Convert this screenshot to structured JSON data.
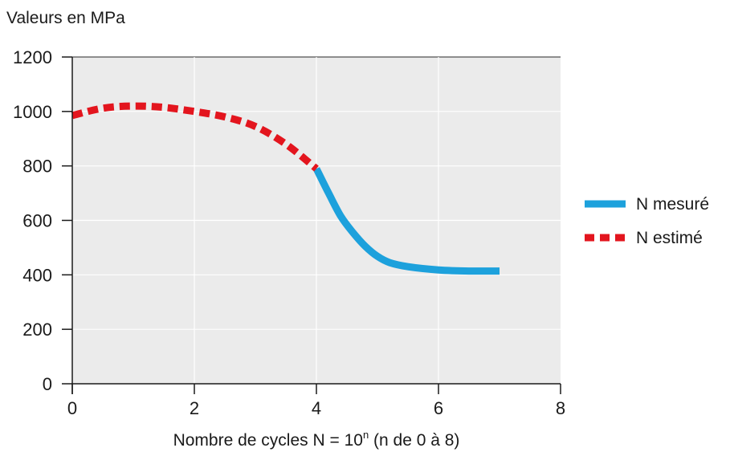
{
  "chart_data": {
    "type": "line",
    "title": "",
    "ylabel": "Valeurs en MPa",
    "xlabel": {
      "prefix": "Nombre de cycles N = 10",
      "superscript": "n",
      "suffix": " (n de 0 à 8)"
    },
    "xlim": [
      0,
      8
    ],
    "ylim": [
      0,
      1200
    ],
    "x_ticks": [
      0,
      2,
      4,
      6,
      8
    ],
    "y_ticks": [
      0,
      200,
      400,
      600,
      800,
      1000,
      1200
    ],
    "grid": true,
    "legend_position": "right",
    "series": [
      {
        "name": "N mesuré",
        "style": "solid",
        "color": "#1da1dc",
        "x": [
          4.0,
          4.2,
          4.4,
          4.6,
          4.8,
          5.0,
          5.2,
          5.5,
          6.0,
          6.5,
          7.0
        ],
        "y": [
          790,
          700,
          615,
          555,
          505,
          468,
          445,
          430,
          418,
          414,
          414
        ]
      },
      {
        "name": "N estimé",
        "style": "dashed",
        "color": "#e3151e",
        "x": [
          0.0,
          0.5,
          1.0,
          1.5,
          2.0,
          2.5,
          3.0,
          3.5,
          4.0
        ],
        "y": [
          985,
          1012,
          1020,
          1015,
          1000,
          980,
          945,
          880,
          790
        ]
      }
    ]
  },
  "colors": {
    "plot_background": "#ebebeb",
    "grid": "#ffffff",
    "axis": "#1a1a1a"
  }
}
